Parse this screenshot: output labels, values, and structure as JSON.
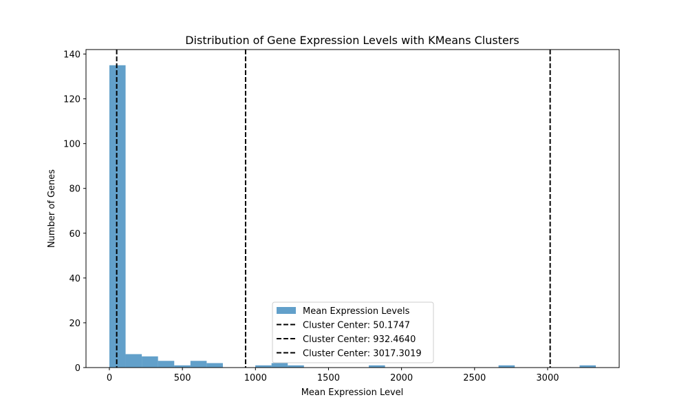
{
  "chart_data": {
    "type": "bar",
    "title": "Distribution of Gene Expression Levels with KMeans Clusters",
    "xlabel": "Mean Expression Level",
    "ylabel": "Number of Genes",
    "xlim": [
      -160,
      3490
    ],
    "ylim": [
      0,
      142
    ],
    "xticks": [
      0,
      500,
      1000,
      1500,
      2000,
      2500,
      3000
    ],
    "yticks": [
      0,
      20,
      40,
      60,
      80,
      100,
      120,
      140
    ],
    "grid": false,
    "legend_position": "lower center",
    "series": [
      {
        "name": "Mean Expression Levels",
        "color": "#1f77b4",
        "opacity": 0.7,
        "bins": [
          {
            "x0": 0,
            "x1": 111,
            "count": 135
          },
          {
            "x0": 111,
            "x1": 222,
            "count": 6
          },
          {
            "x0": 222,
            "x1": 333,
            "count": 5
          },
          {
            "x0": 333,
            "x1": 444,
            "count": 3
          },
          {
            "x0": 444,
            "x1": 555,
            "count": 1
          },
          {
            "x0": 555,
            "x1": 666,
            "count": 3
          },
          {
            "x0": 666,
            "x1": 777,
            "count": 2
          },
          {
            "x0": 999,
            "x1": 1110,
            "count": 1
          },
          {
            "x0": 1110,
            "x1": 1221,
            "count": 2
          },
          {
            "x0": 1221,
            "x1": 1332,
            "count": 1
          },
          {
            "x0": 1776,
            "x1": 1887,
            "count": 1
          },
          {
            "x0": 2664,
            "x1": 2775,
            "count": 1
          },
          {
            "x0": 3219,
            "x1": 3330,
            "count": 1
          }
        ]
      }
    ],
    "vlines": [
      {
        "name": "Cluster Center: 50.1747",
        "x": 50.1747,
        "color": "#000000",
        "style": "dashed"
      },
      {
        "name": "Cluster Center: 932.4640",
        "x": 932.464,
        "color": "#000000",
        "style": "dashed"
      },
      {
        "name": "Cluster Center: 3017.3019",
        "x": 3017.3019,
        "color": "#000000",
        "style": "dashed"
      }
    ]
  }
}
